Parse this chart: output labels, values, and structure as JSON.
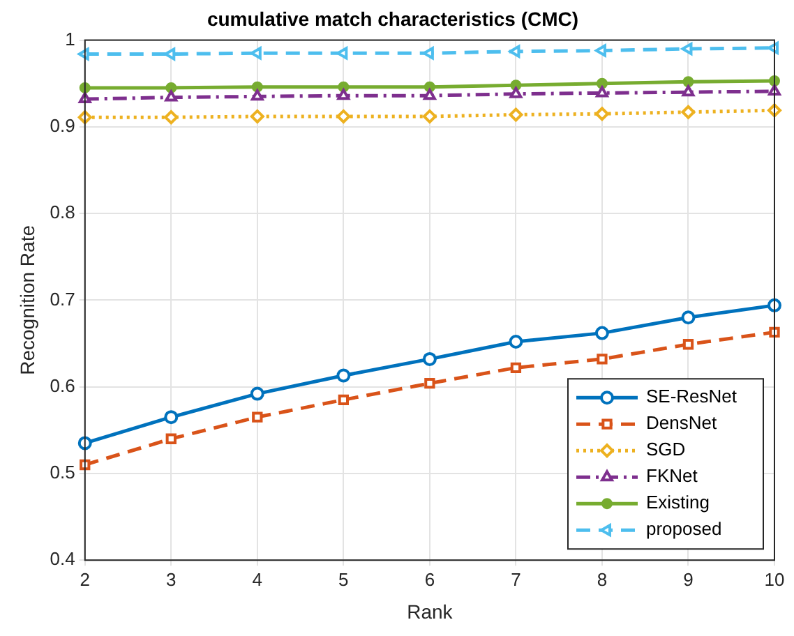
{
  "chart_data": {
    "type": "line",
    "title": "cumulative match characteristics (CMC)",
    "xlabel": "Rank",
    "ylabel": "Recognition Rate",
    "x": [
      2,
      3,
      4,
      5,
      6,
      7,
      8,
      9,
      10
    ],
    "xlim": [
      2,
      10
    ],
    "xticks": [
      2,
      3,
      4,
      5,
      6,
      7,
      8,
      9,
      10
    ],
    "ylim": [
      0.4,
      1
    ],
    "yticks": [
      0.4,
      0.5,
      0.6,
      0.7,
      0.8,
      0.9,
      1
    ],
    "grid": true,
    "legend": "bottom right",
    "series": [
      {
        "name": "SE-ResNet",
        "color": "#0072bd",
        "marker": "circle",
        "line_style": "solid",
        "values": [
          0.535,
          0.565,
          0.592,
          0.613,
          0.632,
          0.652,
          0.662,
          0.68,
          0.694
        ]
      },
      {
        "name": "DensNet",
        "color": "#d95319",
        "marker": "square",
        "line_style": "dashed",
        "values": [
          0.51,
          0.54,
          0.565,
          0.585,
          0.604,
          0.622,
          0.632,
          0.649,
          0.663
        ]
      },
      {
        "name": "SGD",
        "color": "#edb120",
        "marker": "diamond",
        "line_style": "dotted",
        "values": [
          0.911,
          0.911,
          0.912,
          0.912,
          0.912,
          0.914,
          0.915,
          0.917,
          0.919
        ]
      },
      {
        "name": "FKNet",
        "color": "#7e2f8e",
        "marker": "triangle",
        "line_style": "dashdot",
        "values": [
          0.932,
          0.934,
          0.935,
          0.936,
          0.936,
          0.938,
          0.939,
          0.94,
          0.941
        ]
      },
      {
        "name": "Existing",
        "color": "#77ac30",
        "marker": "circle",
        "line_style": "solid",
        "values": [
          0.945,
          0.945,
          0.946,
          0.946,
          0.946,
          0.948,
          0.95,
          0.952,
          0.953
        ]
      },
      {
        "name": "proposed",
        "color": "#4dbeee",
        "marker": "triangle-left",
        "line_style": "dashed",
        "values": [
          0.984,
          0.984,
          0.985,
          0.985,
          0.985,
          0.987,
          0.988,
          0.99,
          0.991
        ]
      }
    ]
  }
}
